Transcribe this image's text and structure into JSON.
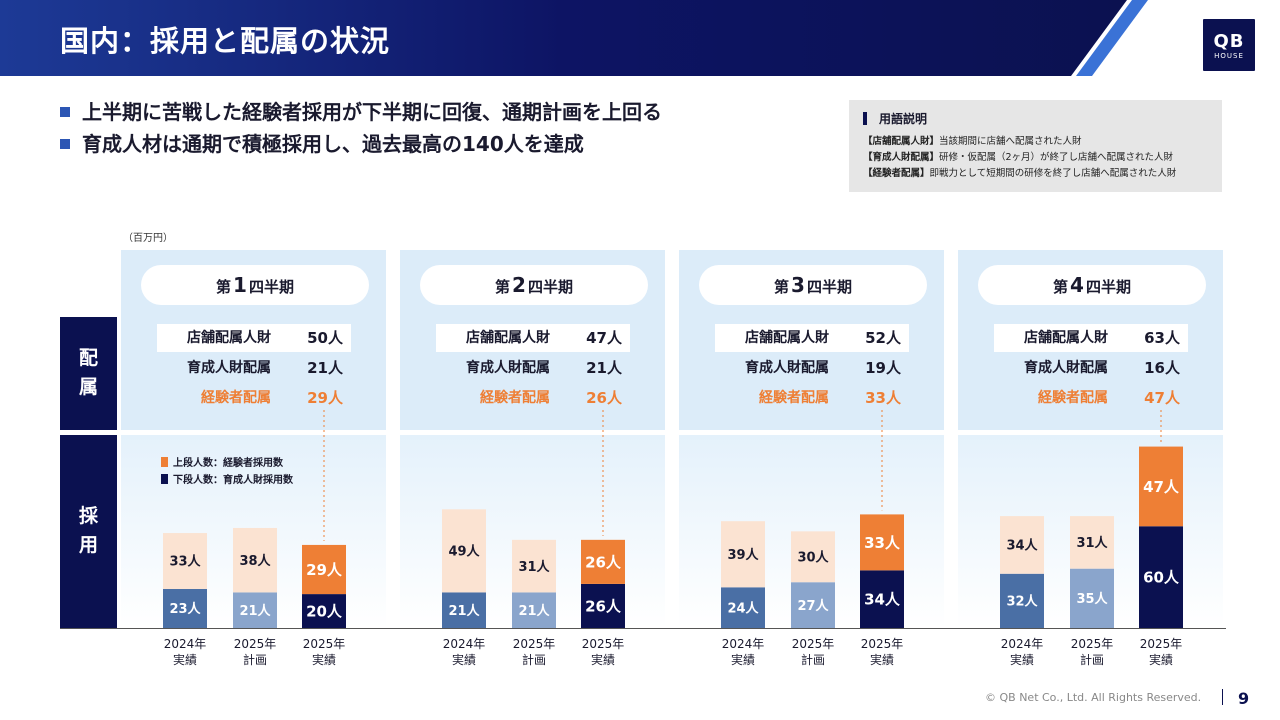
{
  "header": {
    "title": "国内：採用と配属の状況",
    "logo_main": "QB",
    "logo_sub": "HOUSE"
  },
  "bullets": [
    "上半期に苦戦した経験者採用が下半期に回復、通期計画を上回る",
    "育成人材は通期で積極採用し、過去最高の140人を達成"
  ],
  "glossary": {
    "heading": "用語説明",
    "items": [
      {
        "term": "【店舗配属人財】",
        "desc": "当該期間に店舗へ配属された人財"
      },
      {
        "term": "【育成人財配属】",
        "desc": "研修・仮配属（2ヶ月）が終了し店舗へ配属された人財"
      },
      {
        "term": "【経験者配属】",
        "desc": "即戦力として短期間の研修を終了し店舗へ配属された人財"
      }
    ]
  },
  "unit_label": "（百万円）",
  "side_labels": {
    "assignment": [
      "配",
      "属"
    ],
    "hiring": [
      "採",
      "用"
    ]
  },
  "stat_labels": {
    "store": "店舗配属人財",
    "trainee": "育成人財配属",
    "experienced": "経験者配属"
  },
  "legend": {
    "upper": "上段人数：経験者採用数",
    "lower": "下段人数：育成人財採用数"
  },
  "colors": {
    "navy": "#0b1150",
    "orange": "#ee7f35",
    "past_lower": "#4a6fa5",
    "plan_lower": "#8aa5cc",
    "past_upper": "#fbe3d2"
  },
  "footer": {
    "copyright": "© QB Net Co., Ltd. All Rights Reserved.",
    "page": "9"
  },
  "quarters": [
    {
      "prefix": "第",
      "num": "1",
      "suffix": "四半期",
      "store": "50人",
      "trainee": "21人",
      "experienced": "29人"
    },
    {
      "prefix": "第",
      "num": "2",
      "suffix": "四半期",
      "store": "47人",
      "trainee": "21人",
      "experienced": "26人"
    },
    {
      "prefix": "第",
      "num": "3",
      "suffix": "四半期",
      "store": "52人",
      "trainee": "19人",
      "experienced": "33人"
    },
    {
      "prefix": "第",
      "num": "4",
      "suffix": "四半期",
      "store": "63人",
      "trainee": "16人",
      "experienced": "47人"
    }
  ],
  "chart_data": {
    "type": "bar",
    "stacked": true,
    "categories": [
      "2024年\n実績",
      "2025年\n計画",
      "2025年\n実績"
    ],
    "value_suffix": "人",
    "legend_position": "top-left",
    "panels": [
      {
        "title": "第1四半期",
        "series": [
          {
            "name": "下段人数：育成人財採用数",
            "values": [
              23,
              21,
              20
            ]
          },
          {
            "name": "上段人数：経験者採用数",
            "values": [
              33,
              38,
              29
            ]
          }
        ]
      },
      {
        "title": "第2四半期",
        "series": [
          {
            "name": "下段人数：育成人財採用数",
            "values": [
              21,
              21,
              26
            ]
          },
          {
            "name": "上段人数：経験者採用数",
            "values": [
              49,
              31,
              26
            ]
          }
        ]
      },
      {
        "title": "第3四半期",
        "series": [
          {
            "name": "下段人数：育成人財採用数",
            "values": [
              24,
              27,
              34
            ]
          },
          {
            "name": "上段人数：経験者採用数",
            "values": [
              39,
              30,
              33
            ]
          }
        ]
      },
      {
        "title": "第4四半期",
        "series": [
          {
            "name": "下段人数：育成人財採用数",
            "values": [
              32,
              35,
              60
            ]
          },
          {
            "name": "上段人数：経験者採用数",
            "values": [
              34,
              31,
              47
            ]
          }
        ]
      }
    ]
  }
}
